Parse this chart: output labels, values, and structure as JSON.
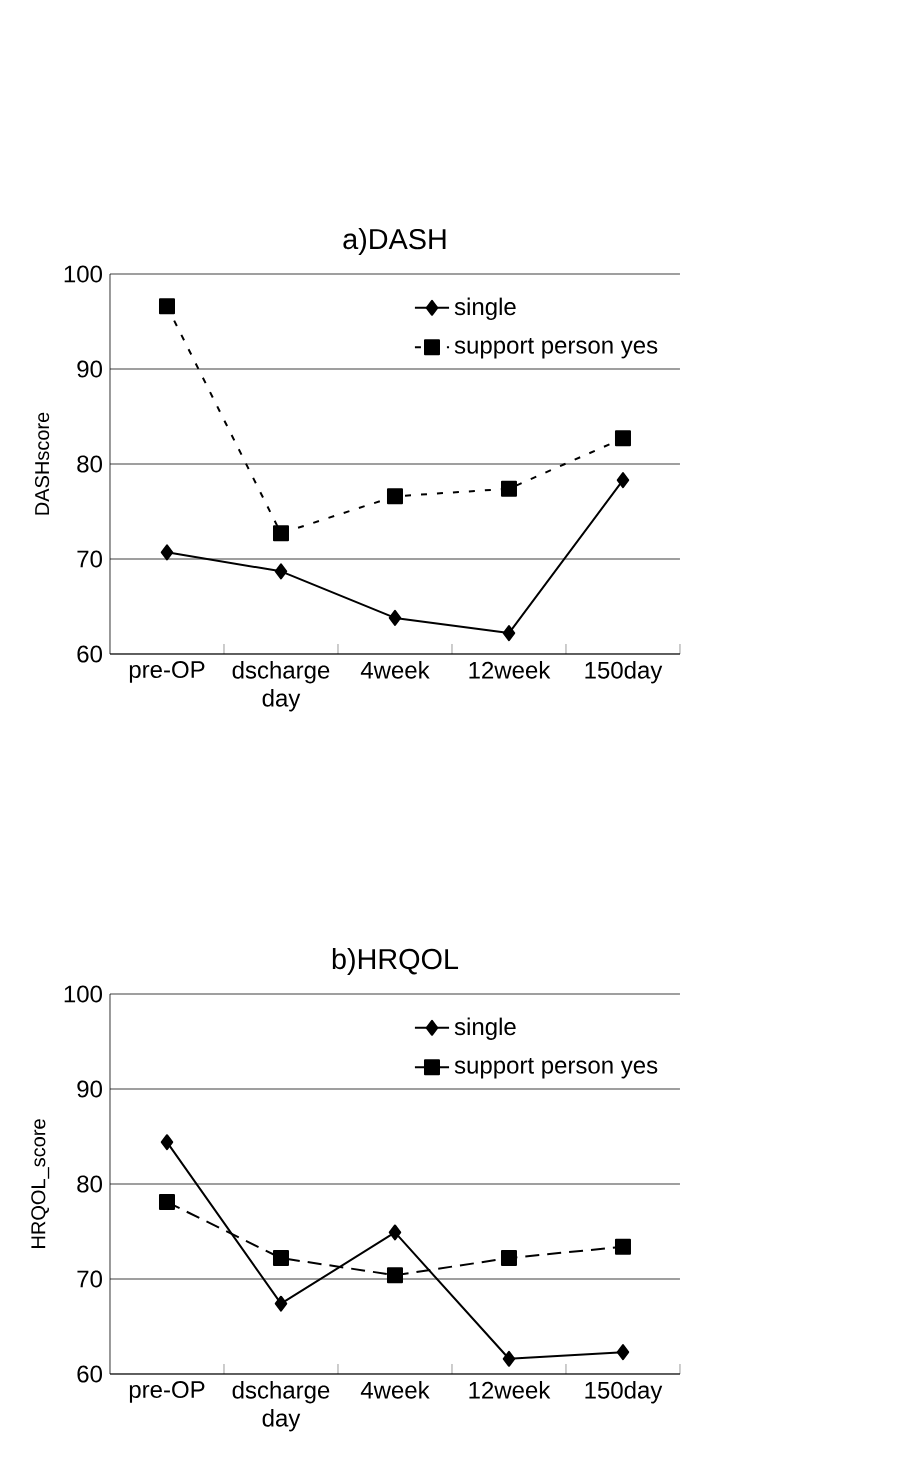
{
  "chart_data": [
    {
      "type": "line",
      "title": "a)DASH",
      "ylabel": "DASHscore",
      "categories": [
        "pre-OP",
        "dscharge day",
        "4week",
        "12week",
        "150day"
      ],
      "ylim": [
        60,
        100
      ],
      "yticks": [
        60,
        70,
        80,
        90,
        100
      ],
      "grid": "y",
      "legend": "top right",
      "series": [
        {
          "name": "single",
          "color": "#000000",
          "marker": "diamond",
          "line_style": "solid",
          "values": [
            70.7,
            68.7,
            63.8,
            62.2,
            78.3
          ]
        },
        {
          "name": "support person yes",
          "color": "#000000",
          "marker": "square",
          "line_style": "dotted",
          "values": [
            96.6,
            72.7,
            76.6,
            77.4,
            82.7
          ]
        }
      ]
    },
    {
      "type": "line",
      "title": "b)HRQOL",
      "ylabel": "HRQOL_score",
      "categories": [
        "pre-OP",
        "dscharge day",
        "4week",
        "12week",
        "150day"
      ],
      "ylim": [
        60,
        100
      ],
      "yticks": [
        60,
        70,
        80,
        90,
        100
      ],
      "grid": "y",
      "legend": "top right",
      "series": [
        {
          "name": "single",
          "color": "#000000",
          "marker": "diamond",
          "line_style": "solid",
          "values": [
            84.4,
            67.4,
            74.9,
            61.6,
            62.3
          ]
        },
        {
          "name": "support person yes",
          "color": "#000000",
          "marker": "square",
          "line_style": "dashed",
          "values": [
            78.1,
            72.2,
            70.4,
            72.2,
            73.4
          ]
        }
      ]
    }
  ]
}
